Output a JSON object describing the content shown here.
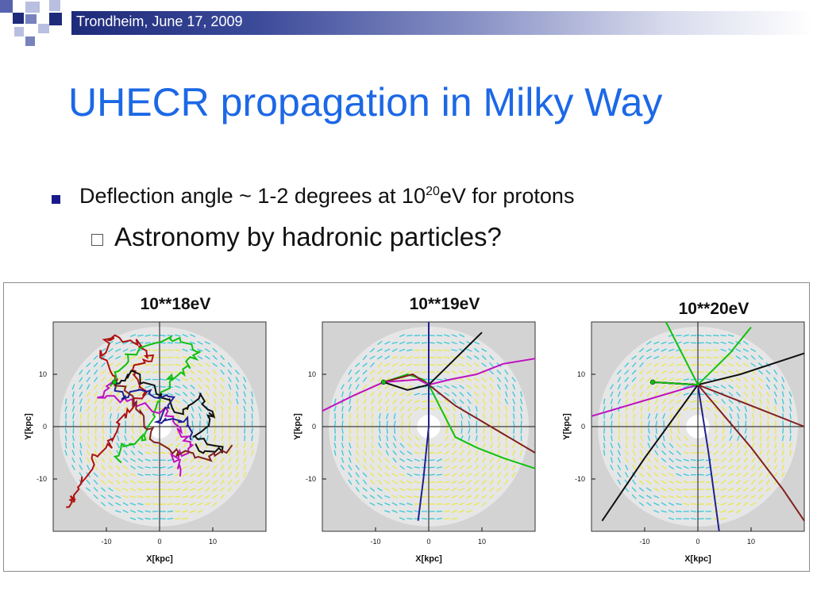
{
  "header": {
    "date_text": "Trondheim, June 17, 2009",
    "colors": {
      "dark": "#1e2b7a",
      "mid": "#5763ae",
      "light": "#b9bfe0"
    }
  },
  "slide": {
    "title": "UHECR propagation in Milky Way",
    "title_color": "#1c68e6",
    "bullet1": {
      "prefix": "Deflection angle ~ 1-2 degrees at 10",
      "exponent": "20",
      "suffix": "eV for protons"
    },
    "bullet2": "Astronomy by hadronic particles?"
  },
  "chart_data": [
    {
      "type": "scatter",
      "title": "10**18eV",
      "xlabel": "X[kpc]",
      "ylabel": "Y[kpc]",
      "x_ticks": [
        "-10",
        "0",
        "10"
      ],
      "y_ticks": [
        "10",
        "0",
        "-10"
      ],
      "xlim": [
        -20,
        20
      ],
      "ylim": [
        -20,
        20
      ],
      "source_point": [
        -8.5,
        8.5
      ]
    },
    {
      "type": "line",
      "title": "10**19eV",
      "xlabel": "X[kpc]",
      "ylabel": "Y[kpc]",
      "x_ticks": [
        "-10",
        "0",
        "10"
      ],
      "y_ticks": [
        "10",
        "0",
        "-10"
      ],
      "xlim": [
        -20,
        20
      ],
      "ylim": [
        -20,
        20
      ],
      "source_point": [
        -8.5,
        8.5
      ]
    },
    {
      "type": "line",
      "title": "10**20eV",
      "xlabel": "X[kpc]",
      "ylabel": "Y[kpc]",
      "x_ticks": [
        "-10",
        "0",
        "10"
      ],
      "y_ticks": [
        "10",
        "0",
        "-10"
      ],
      "xlim": [
        -20,
        20
      ],
      "ylim": [
        -20,
        20
      ],
      "source_point": [
        -8.5,
        8.5
      ]
    }
  ],
  "figure_colors": {
    "disk": "#e6e6e6",
    "field_yellow": "#e8e84a",
    "field_cyan": "#38c8d8",
    "tracks": [
      "#b01010",
      "#10c010",
      "#101010",
      "#c010c0",
      "#202090",
      "#802020"
    ]
  }
}
